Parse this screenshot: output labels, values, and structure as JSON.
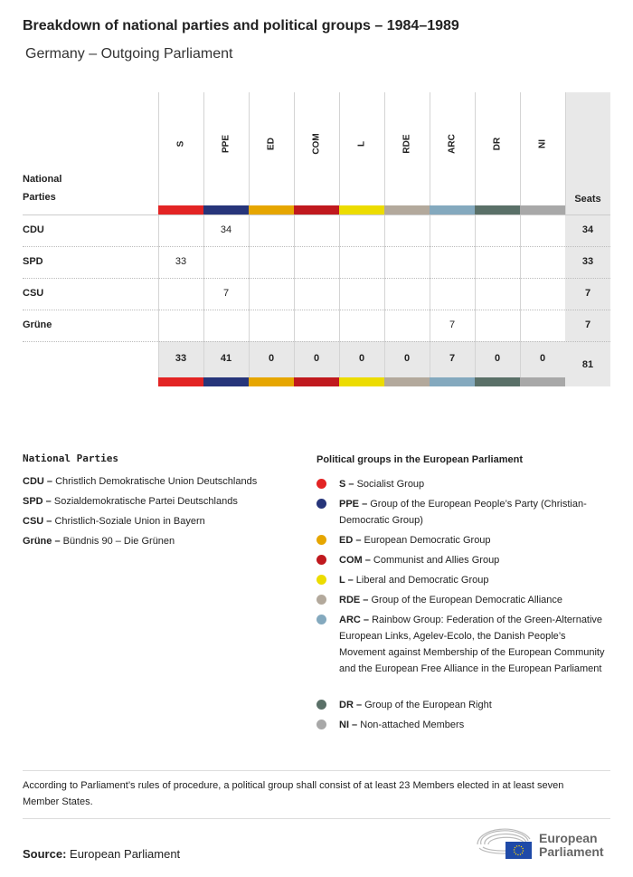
{
  "title": "Breakdown of national parties and political groups – 1984–1989",
  "subtitle": "Germany – Outgoing Parliament",
  "chart_data": {
    "type": "table",
    "row_header": "National Parties",
    "seats_header": "Seats",
    "groups": [
      {
        "code": "S",
        "color": "#e32424"
      },
      {
        "code": "PPE",
        "color": "#27357a"
      },
      {
        "code": "ED",
        "color": "#e6a600"
      },
      {
        "code": "COM",
        "color": "#c0191e"
      },
      {
        "code": "L",
        "color": "#ecdc00"
      },
      {
        "code": "RDE",
        "color": "#b3a99c"
      },
      {
        "code": "ARC",
        "color": "#84a9be"
      },
      {
        "code": "DR",
        "color": "#5a7068"
      },
      {
        "code": "NI",
        "color": "#a8a8a8"
      }
    ],
    "rows": [
      {
        "party": "CDU",
        "values": [
          null,
          34,
          null,
          null,
          null,
          null,
          null,
          null,
          null
        ],
        "seats": 34
      },
      {
        "party": "SPD",
        "values": [
          33,
          null,
          null,
          null,
          null,
          null,
          null,
          null,
          null
        ],
        "seats": 33
      },
      {
        "party": "CSU",
        "values": [
          null,
          7,
          null,
          null,
          null,
          null,
          null,
          null,
          null
        ],
        "seats": 7
      },
      {
        "party": "Grüne",
        "values": [
          null,
          null,
          null,
          null,
          null,
          null,
          7,
          null,
          null
        ],
        "seats": 7
      }
    ],
    "totals": [
      33,
      41,
      0,
      0,
      0,
      0,
      7,
      0,
      0
    ],
    "total_seats": 81
  },
  "legend_parties": {
    "title": "National Parties",
    "items": [
      {
        "abbr": "CDU –",
        "name": "Christlich Demokratische Union Deutschlands"
      },
      {
        "abbr": "SPD –",
        "name": "Sozialdemokratische Partei Deutschlands"
      },
      {
        "abbr": "CSU –",
        "name": "Christlich-Soziale Union in Bayern"
      },
      {
        "abbr": "Grüne –",
        "name": "Bündnis 90 – Die Grünen"
      }
    ]
  },
  "legend_groups": {
    "title": "Political groups in the European Parliament",
    "items": [
      {
        "abbr": "S –",
        "name": "Socialist Group"
      },
      {
        "abbr": "PPE –",
        "name": "Group of the European People’s Party (Christian-Democratic Group)"
      },
      {
        "abbr": "ED –",
        "name": "European Democratic Group"
      },
      {
        "abbr": "COM –",
        "name": "Communist and Allies Group"
      },
      {
        "abbr": "L –",
        "name": "Liberal and Democratic Group"
      },
      {
        "abbr": "RDE –",
        "name": "Group of the European Democratic Alliance"
      },
      {
        "abbr": "ARC –",
        "name": "Rainbow Group: Federation of the Green-Alternative European Links, Agelev-Ecolo, the Danish People’s Movement against Membership of the European Community and the European Free Alliance in the European Parliament"
      },
      {
        "abbr": "DR –",
        "name": "Group of the European Right"
      },
      {
        "abbr": "NI –",
        "name": "Non-attached Members"
      }
    ]
  },
  "footnote": "According to Parliament’s rules of procedure, a political group shall consist of at least 23 Members elected in at least seven Member States.",
  "source_label": "Source:",
  "source": "European Parliament",
  "logo_text": [
    "European",
    "Parliament"
  ]
}
